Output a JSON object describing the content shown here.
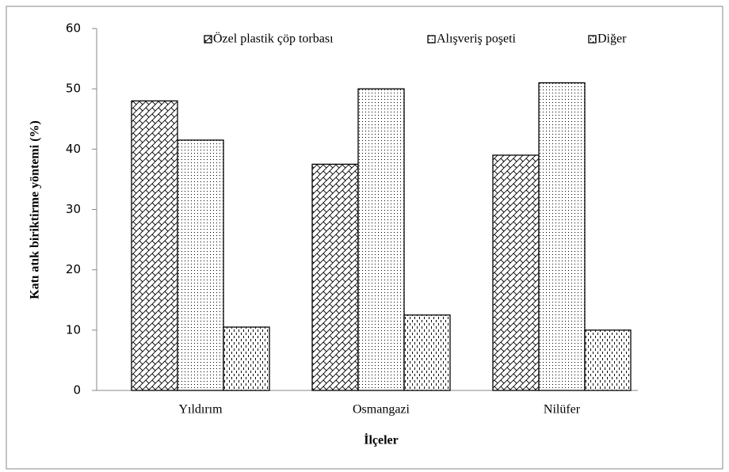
{
  "chart_data": {
    "type": "bar",
    "y_label": "Katı atık biriktirme yöntemi (%)",
    "x_label": "İlçeler",
    "categories": [
      "Yıldırım",
      "Osmangazi",
      "Nilüfer"
    ],
    "series": [
      {
        "name": "Özel plastik çöp torbası",
        "color": "#000000",
        "pattern": "crosshatch",
        "values": [
          48,
          37.5,
          39
        ]
      },
      {
        "name": "Alışveriş poşeti",
        "color": "#000000",
        "pattern": "dots",
        "values": [
          41.5,
          50,
          51
        ]
      },
      {
        "name": "Diğer",
        "color": "#000000",
        "pattern": "dashes",
        "values": [
          10.5,
          12.5,
          10
        ]
      }
    ],
    "ylim": [
      0,
      60
    ],
    "yticks": [
      0,
      10,
      20,
      30,
      40,
      50,
      60
    ],
    "grid": false,
    "legend": "top"
  }
}
